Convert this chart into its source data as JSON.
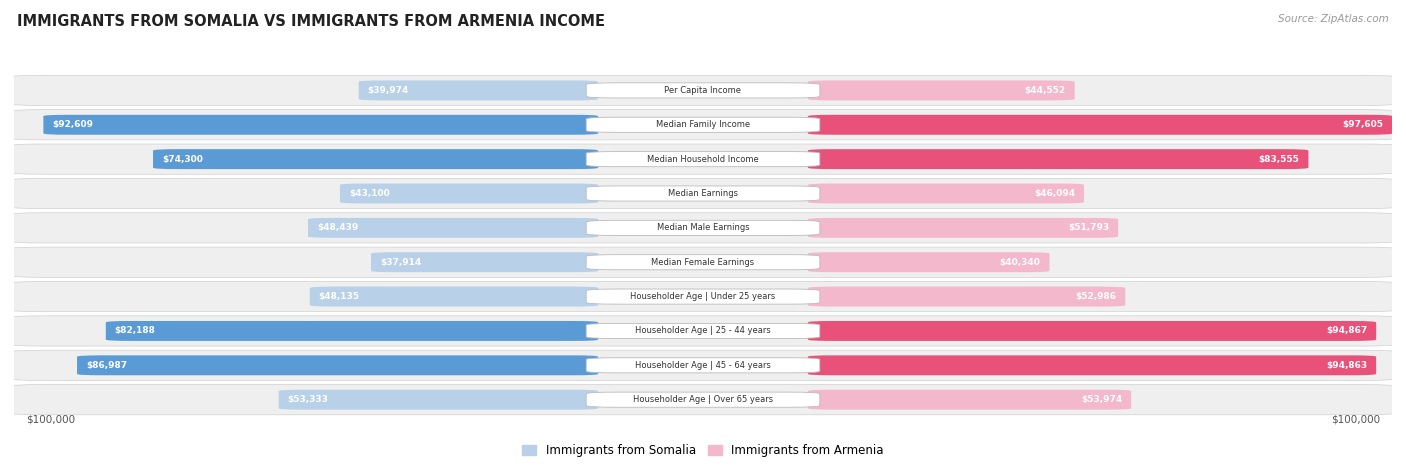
{
  "title": "IMMIGRANTS FROM SOMALIA VS IMMIGRANTS FROM ARMENIA INCOME",
  "source": "Source: ZipAtlas.com",
  "categories": [
    "Per Capita Income",
    "Median Family Income",
    "Median Household Income",
    "Median Earnings",
    "Median Male Earnings",
    "Median Female Earnings",
    "Householder Age | Under 25 years",
    "Householder Age | 25 - 44 years",
    "Householder Age | 45 - 64 years",
    "Householder Age | Over 65 years"
  ],
  "somalia_values": [
    39974,
    92609,
    74300,
    43100,
    48439,
    37914,
    48135,
    82188,
    86987,
    53333
  ],
  "armenia_values": [
    44552,
    97605,
    83555,
    46094,
    51793,
    40340,
    52986,
    94867,
    94863,
    53974
  ],
  "somalia_labels": [
    "$39,974",
    "$92,609",
    "$74,300",
    "$43,100",
    "$48,439",
    "$37,914",
    "$48,135",
    "$82,188",
    "$86,987",
    "$53,333"
  ],
  "armenia_labels": [
    "$44,552",
    "$97,605",
    "$83,555",
    "$46,094",
    "$51,793",
    "$40,340",
    "$52,986",
    "$94,867",
    "$94,863",
    "$53,974"
  ],
  "max_value": 100000,
  "somalia_color_light": "#b8d0e8",
  "somalia_color_dark": "#5b9bd5",
  "armenia_color_light": "#f4b8cc",
  "armenia_color_dark": "#e8527a",
  "somalia_threshold": 60000,
  "armenia_threshold": 60000,
  "bg_color": "#ffffff",
  "row_bg_color": "#efefef",
  "legend_somalia": "Immigrants from Somalia",
  "legend_armenia": "Immigrants from Armenia",
  "xlabel_left": "$100,000",
  "xlabel_right": "$100,000"
}
